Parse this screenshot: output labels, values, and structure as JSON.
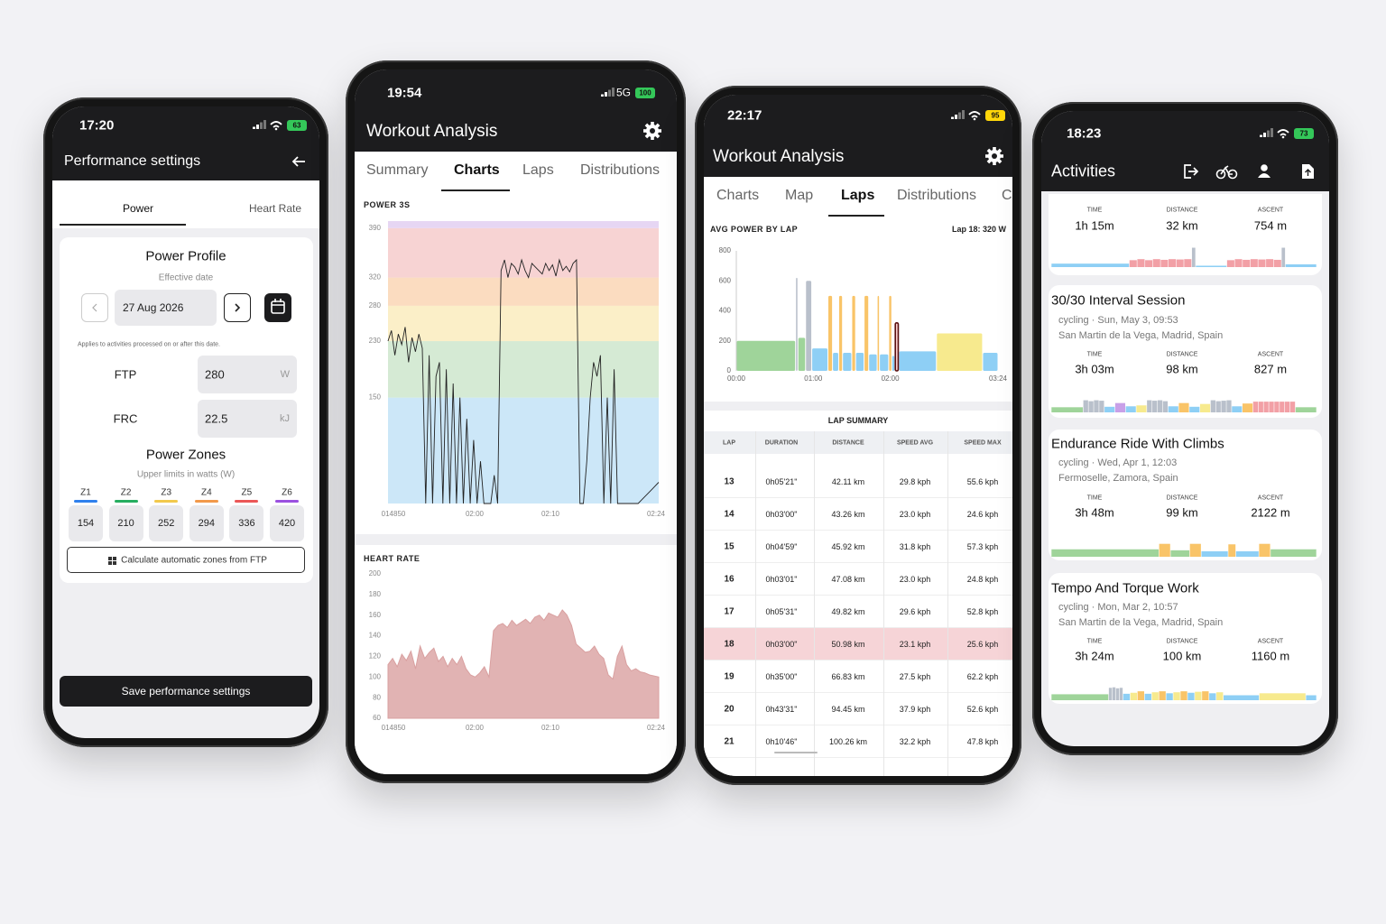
{
  "performance": {
    "status": {
      "time": "17:20",
      "battery": "63"
    },
    "title": "Performance settings",
    "tabs": [
      "Power",
      "Heart Rate"
    ],
    "profile": {
      "title": "Power Profile",
      "date_label": "Effective date",
      "date": "27 Aug 2026",
      "note": "Applies to activities processed on or after this date."
    },
    "fields": [
      {
        "label": "FTP",
        "value": 280,
        "unit": "W"
      },
      {
        "label": "FRC",
        "value": 22.5,
        "unit": "kJ"
      }
    ],
    "zones": {
      "title": "Power Zones",
      "subtitle": "Upper limits in watts (W)",
      "names": [
        "Z1",
        "Z2",
        "Z3",
        "Z4",
        "Z5",
        "Z6"
      ],
      "colors": [
        "#2f80ed",
        "#27ae60",
        "#f2c94c",
        "#f2994a",
        "#eb5757",
        "#9b51e0"
      ],
      "values": [
        154,
        210,
        252,
        294,
        336,
        420
      ]
    },
    "calc_button": "Calculate automatic zones from FTP",
    "save_button": "Save performance settings"
  },
  "analysis_charts": {
    "status": {
      "time": "19:54",
      "network": "5G",
      "battery": "100"
    },
    "title": "Workout Analysis",
    "tabs": [
      "Summary",
      "Charts",
      "Laps",
      "Distributions"
    ],
    "active_tab": 1,
    "power": {
      "title": "POWER 3S",
      "ylim": [
        0,
        400
      ],
      "yticks": [
        150,
        230,
        280,
        320,
        390
      ],
      "band_colors": [
        "#cce7f8",
        "#d5ead4",
        "#fbefc8",
        "#fbdcc0",
        "#f7d3d3",
        "#e6d6f3"
      ],
      "x_labels": [
        "014850",
        "02:00",
        "02:10",
        "02:24"
      ],
      "color": "#222222",
      "values": [
        230,
        245,
        210,
        240,
        225,
        250,
        200,
        235,
        215,
        240,
        220,
        0,
        210,
        0,
        180,
        200,
        0,
        190,
        0,
        170,
        0,
        150,
        0,
        120,
        0,
        90,
        0,
        60,
        0,
        0,
        0,
        40,
        0,
        330,
        345,
        320,
        340,
        335,
        325,
        345,
        330,
        320,
        340,
        335,
        330,
        325,
        340,
        330,
        338,
        322,
        345,
        330,
        336,
        328,
        340,
        345,
        0,
        0,
        60,
        150,
        200,
        180,
        210,
        0,
        150,
        0,
        190,
        0,
        0,
        0,
        0,
        0,
        0,
        0,
        5,
        10,
        15,
        20,
        25,
        30
      ]
    },
    "heart_rate": {
      "title": "HEART RATE",
      "ylim": [
        60,
        200
      ],
      "yticks": [
        60,
        80,
        100,
        120,
        140,
        160,
        180,
        200
      ],
      "x_labels": [
        "014850",
        "02:00",
        "02:10",
        "02:24"
      ],
      "color": "#d9a0a0",
      "values": [
        112,
        118,
        110,
        122,
        116,
        125,
        108,
        130,
        118,
        124,
        128,
        115,
        120,
        110,
        118,
        112,
        120,
        108,
        102,
        100,
        104,
        110,
        100,
        145,
        150,
        152,
        148,
        155,
        150,
        153,
        156,
        152,
        158,
        160,
        155,
        162,
        160,
        158,
        165,
        160,
        150,
        132,
        128,
        124,
        125,
        130,
        122,
        118,
        102,
        98,
        120,
        130,
        112,
        106,
        108,
        105,
        104,
        102,
        101,
        100
      ]
    }
  },
  "analysis_laps": {
    "status": {
      "time": "22:17",
      "battery": "95"
    },
    "title": "Workout Analysis",
    "tabs": [
      "Charts",
      "Map",
      "Laps",
      "Distributions",
      "C"
    ],
    "active_tab": 2,
    "lap_chart": {
      "title": "AVG POWER BY LAP",
      "selection": "Lap 18: 320 W",
      "ylim": [
        0,
        800
      ],
      "yticks": [
        0,
        200,
        400,
        600,
        800
      ],
      "xlim": [
        0,
        3.4
      ],
      "xticks": [
        {
          "value": 0,
          "label": "00:00"
        },
        {
          "value": 1,
          "label": "01:00"
        },
        {
          "value": 2,
          "label": "02:00"
        },
        {
          "value": 3.4,
          "label": "03:24"
        }
      ],
      "starts": [
        0,
        0.77,
        0.8,
        0.9,
        0.98,
        1.19,
        1.25,
        1.33,
        1.38,
        1.5,
        1.55,
        1.66,
        1.72,
        1.83,
        1.86,
        1.98,
        2.02,
        2.06,
        2.11,
        2.6,
        3.2
      ],
      "values": [
        200,
        620,
        220,
        600,
        150,
        500,
        120,
        500,
        120,
        500,
        120,
        500,
        110,
        500,
        110,
        500,
        100,
        320,
        130,
        250,
        120
      ],
      "colors": [
        "#9fd49a",
        "#b9c0cb",
        "#9fd49a",
        "#b9c0cb",
        "#8ecff5",
        "#f9c468",
        "#8ecff5",
        "#f9c468",
        "#8ecff5",
        "#f9c468",
        "#8ecff5",
        "#f9c468",
        "#8ecff5",
        "#f9c468",
        "#8ecff5",
        "#f9c468",
        "#8ecff5",
        "#f8d0d0",
        "#8ecff5",
        "#f7ea8e",
        "#8ecff5"
      ],
      "selected": 17
    },
    "table": {
      "title": "LAP SUMMARY",
      "headers": [
        "LAP",
        "DURATION",
        "DISTANCE",
        "SPEED AVG",
        "SPEED MAX"
      ],
      "rows": [
        [
          13,
          "0h05'21\"",
          "42.11 km",
          "29.8 kph",
          "55.6 kph"
        ],
        [
          14,
          "0h03'00\"",
          "43.26 km",
          "23.0 kph",
          "24.6 kph"
        ],
        [
          15,
          "0h04'59\"",
          "45.92 km",
          "31.8 kph",
          "57.3 kph"
        ],
        [
          16,
          "0h03'01\"",
          "47.08 km",
          "23.0 kph",
          "24.8 kph"
        ],
        [
          17,
          "0h05'31\"",
          "49.82 km",
          "29.6 kph",
          "52.8 kph"
        ],
        [
          18,
          "0h03'00\"",
          "50.98 km",
          "23.1 kph",
          "25.6 kph"
        ],
        [
          19,
          "0h35'00\"",
          "66.83 km",
          "27.5 kph",
          "62.2 kph"
        ],
        [
          20,
          "0h43'31\"",
          "94.45 km",
          "37.9 kph",
          "52.6 kph"
        ],
        [
          21,
          "0h10'46\"",
          "100.26 km",
          "32.2 kph",
          "47.8 kph"
        ]
      ],
      "selected_row": 5
    }
  },
  "activities": {
    "status": {
      "time": "18:23",
      "battery": "73"
    },
    "title": "Activities",
    "mini_ylim": [
      0,
      600
    ],
    "zone_colors": [
      "#b9c0cb",
      "#8ecff5",
      "#9fd49a",
      "#f7ea8e",
      "#f9c468",
      "#f2a0a6",
      "#c8a0e8"
    ],
    "cards": [
      {
        "stats": [
          {
            "label": "TIME",
            "value": "1h 15m"
          },
          {
            "label": "DISTANCE",
            "value": "32 km"
          },
          {
            "label": "ASCENT",
            "value": "754 m"
          }
        ],
        "chart": {
          "durations": [
            20,
            2,
            2,
            2,
            2,
            2,
            2,
            2,
            2,
            1,
            8,
            2,
            2,
            2,
            2,
            2,
            2,
            2,
            1,
            8
          ],
          "values": [
            100,
            200,
            230,
            200,
            230,
            210,
            230,
            220,
            230,
            560,
            40,
            200,
            230,
            210,
            230,
            220,
            230,
            210,
            560,
            80
          ],
          "zones": [
            1,
            5,
            5,
            5,
            5,
            5,
            5,
            5,
            5,
            0,
            1,
            5,
            5,
            5,
            5,
            5,
            5,
            5,
            0,
            1
          ]
        }
      },
      {
        "title": "30/30 Interval Session",
        "meta": "cycling · Sun, May 3, 09:53",
        "location": "San Martin de la Vega, Madrid, Spain",
        "stats": [
          {
            "label": "TIME",
            "value": "3h 03m"
          },
          {
            "label": "DISTANCE",
            "value": "98 km"
          },
          {
            "label": "ASCENT",
            "value": "827 m"
          }
        ],
        "chart": {
          "durations": [
            6,
            1,
            1,
            1,
            1,
            2,
            2,
            2,
            2,
            1,
            1,
            1,
            1,
            2,
            2,
            2,
            2,
            1,
            1,
            1,
            1,
            2,
            2,
            1,
            1,
            1,
            1,
            1,
            1,
            1,
            1,
            4
          ],
          "values": [
            110,
            260,
            240,
            260,
            250,
            120,
            200,
            130,
            150,
            260,
            250,
            260,
            240,
            130,
            200,
            120,
            180,
            260,
            240,
            250,
            260,
            130,
            190,
            230,
            230,
            230,
            230,
            230,
            230,
            230,
            230,
            110
          ],
          "zones": [
            2,
            0,
            0,
            0,
            0,
            1,
            6,
            1,
            3,
            0,
            0,
            0,
            0,
            1,
            4,
            1,
            3,
            0,
            0,
            0,
            0,
            1,
            4,
            5,
            5,
            5,
            5,
            5,
            5,
            5,
            5,
            2
          ]
        }
      },
      {
        "title": "Endurance Ride With Climbs",
        "meta": "cycling · Wed, Apr 1, 12:03",
        "location": "Fermoselle, Zamora, Spain",
        "stats": [
          {
            "label": "TIME",
            "value": "3h 48m"
          },
          {
            "label": "DISTANCE",
            "value": "99 km"
          },
          {
            "label": "ASCENT",
            "value": "2122 m"
          }
        ],
        "chart": {
          "durations": [
            28,
            3,
            5,
            3,
            7,
            2,
            6,
            3,
            12
          ],
          "values": [
            150,
            260,
            130,
            260,
            110,
            250,
            110,
            260,
            150
          ],
          "zones": [
            2,
            4,
            2,
            4,
            1,
            4,
            1,
            4,
            2
          ]
        }
      },
      {
        "title": "Tempo And Torque Work",
        "meta": "cycling · Mon, Mar 2, 10:57",
        "location": "San Martin de la Vega, Madrid, Spain",
        "stats": [
          {
            "label": "TIME",
            "value": "3h 24m"
          },
          {
            "label": "DISTANCE",
            "value": "100 km"
          },
          {
            "label": "ASCENT",
            "value": "1160 m"
          }
        ],
        "chart": {
          "durations": [
            16,
            1,
            1,
            1,
            1,
            2,
            2,
            2,
            2,
            2,
            2,
            2,
            2,
            2,
            2,
            2,
            2,
            2,
            2,
            10,
            13,
            3
          ],
          "values": [
            120,
            250,
            260,
            240,
            250,
            130,
            150,
            180,
            130,
            160,
            180,
            140,
            160,
            180,
            150,
            170,
            180,
            140,
            160,
            100,
            140,
            100
          ],
          "zones": [
            2,
            0,
            0,
            0,
            0,
            1,
            3,
            4,
            1,
            3,
            4,
            1,
            3,
            4,
            1,
            3,
            4,
            1,
            3,
            1,
            3,
            1
          ]
        }
      }
    ]
  }
}
